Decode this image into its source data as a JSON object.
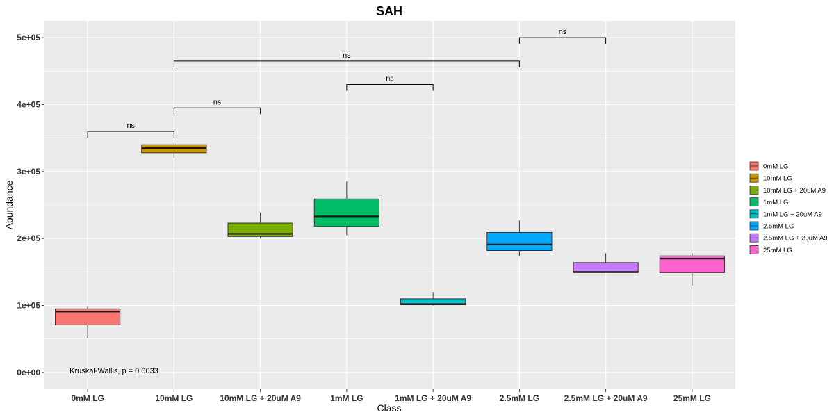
{
  "chart_data": {
    "type": "boxplot",
    "title": "SAH",
    "xlabel": "Class",
    "ylabel": "Abundance",
    "ylim": [
      -25000,
      525000
    ],
    "y_ticks": [
      0,
      100000,
      200000,
      300000,
      400000,
      500000
    ],
    "y_tick_labels": [
      "0e+00",
      "1e+05",
      "2e+05",
      "3e+05",
      "4e+05",
      "5e+05"
    ],
    "grid": true,
    "legend_position": "right",
    "categories": [
      "0mM LG",
      "10mM LG",
      "10mM LG + 20uM A9",
      "1mM LG",
      "1mM LG + 20uM A9",
      "2.5mM LG",
      "2.5mM LG + 20uM A9",
      "25mM LG"
    ],
    "boxes": [
      {
        "category": "0mM LG",
        "min": 51000,
        "q1": 71000,
        "median": 91000,
        "q3": 95000,
        "max": 98000,
        "color": "#F8766D"
      },
      {
        "category": "10mM LG",
        "min": 320000,
        "q1": 328000,
        "median": 335000,
        "q3": 340000,
        "max": 343000,
        "color": "#CD9600"
      },
      {
        "category": "10mM LG + 20uM A9",
        "min": 200000,
        "q1": 203000,
        "median": 207000,
        "q3": 223000,
        "max": 239000,
        "color": "#7CAE00"
      },
      {
        "category": "1mM LG",
        "min": 205000,
        "q1": 218000,
        "median": 233000,
        "q3": 259000,
        "max": 285000,
        "color": "#00BE67"
      },
      {
        "category": "1mM LG + 20uM A9",
        "min": 100000,
        "q1": 101000,
        "median": 102000,
        "q3": 110000,
        "max": 120000,
        "color": "#00BFC4"
      },
      {
        "category": "2.5mM LG",
        "min": 174000,
        "q1": 182000,
        "median": 191000,
        "q3": 209000,
        "max": 227000,
        "color": "#00A9FF"
      },
      {
        "category": "2.5mM LG + 20uM A9",
        "min": 149000,
        "q1": 149000,
        "median": 150000,
        "q3": 164000,
        "max": 178000,
        "color": "#C77CFF"
      },
      {
        "category": "25mM LG",
        "min": 130000,
        "q1": 149000,
        "median": 170000,
        "q3": 174000,
        "max": 178000,
        "color": "#FF61CC"
      }
    ],
    "comparisons": [
      {
        "from": 0,
        "to": 1,
        "y": 360000,
        "label": "ns"
      },
      {
        "from": 1,
        "to": 2,
        "y": 395000,
        "label": "ns"
      },
      {
        "from": 3,
        "to": 4,
        "y": 430000,
        "label": "ns"
      },
      {
        "from": 1,
        "to": 5,
        "y": 465000,
        "label": "ns"
      },
      {
        "from": 5,
        "to": 6,
        "y": 500000,
        "label": "ns"
      }
    ],
    "annotation": {
      "text": "Kruskal-Wallis, p = 0.0033",
      "x_category_index": 0,
      "y": 3000
    },
    "legend": [
      {
        "label": "0mM LG",
        "color": "#F8766D"
      },
      {
        "label": "10mM LG",
        "color": "#CD9600"
      },
      {
        "label": "10mM LG + 20uM A9",
        "color": "#7CAE00"
      },
      {
        "label": "1mM LG",
        "color": "#00BE67"
      },
      {
        "label": "1mM LG + 20uM A9",
        "color": "#00BFC4"
      },
      {
        "label": "2.5mM LG",
        "color": "#00A9FF"
      },
      {
        "label": "2.5mM LG + 20uM A9",
        "color": "#C77CFF"
      },
      {
        "label": "25mM LG",
        "color": "#FF61CC"
      }
    ]
  }
}
